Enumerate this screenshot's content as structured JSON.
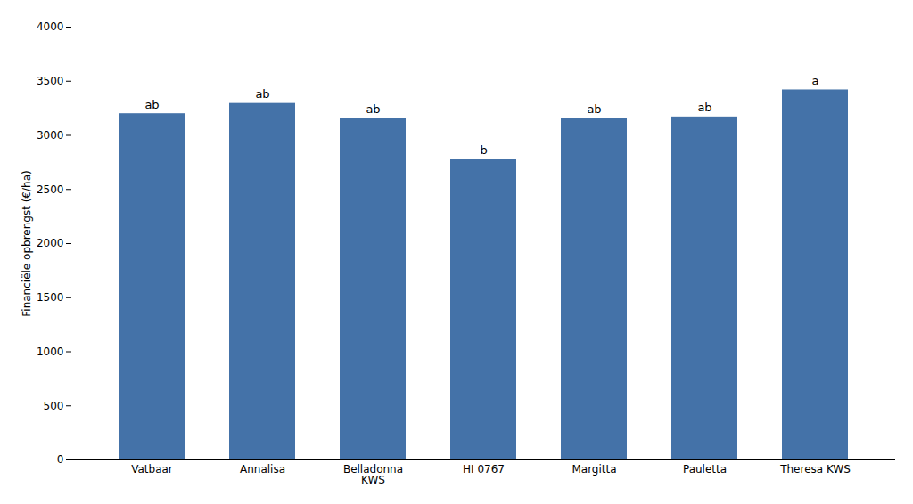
{
  "chart_data": {
    "type": "bar",
    "categories": [
      "Vatbaar",
      "Annalisa",
      "Belladonna\nKWS",
      "HI 0767",
      "Margitta",
      "Pauletta",
      "Theresa KWS"
    ],
    "values": [
      3200,
      3295,
      3155,
      2780,
      3160,
      3170,
      3420
    ],
    "annotations": [
      "ab",
      "ab",
      "ab",
      "b",
      "ab",
      "ab",
      "a"
    ],
    "color": "#4472a8",
    "ylabel": "Financiële opbrengst (€/ha)",
    "ylim": [
      0,
      4000
    ],
    "yticks": [
      0,
      500,
      1000,
      1500,
      2000,
      2500,
      3000,
      3500,
      4000
    ],
    "grid": false
  }
}
